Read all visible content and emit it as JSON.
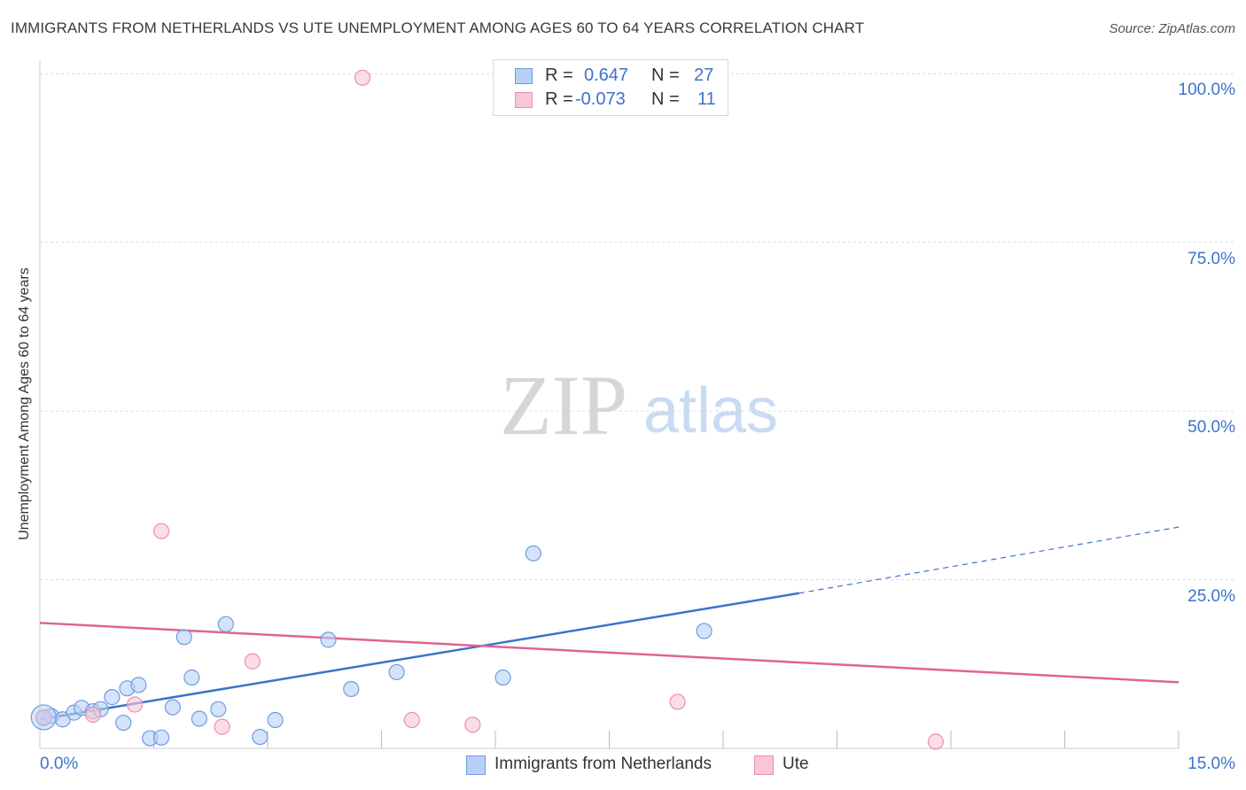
{
  "title": "IMMIGRANTS FROM NETHERLANDS VS UTE UNEMPLOYMENT AMONG AGES 60 TO 64 YEARS CORRELATION CHART",
  "source": "Source: ZipAtlas.com",
  "watermark": {
    "zip": "ZIP",
    "atlas": "atlas"
  },
  "legend": {
    "rows": [
      {
        "r_label": "R =",
        "r_value": "0.647",
        "n_label": "N =",
        "n_value": "27",
        "fill": "#b7d0f5",
        "stroke": "#6f9be0"
      },
      {
        "r_label": "R =",
        "r_value": "-0.073",
        "n_label": "N =",
        "n_value": "11",
        "fill": "#f8c6d6",
        "stroke": "#e88fab"
      }
    ]
  },
  "bottom_legend": [
    {
      "label": "Immigrants from Netherlands",
      "fill": "#b7d0f5",
      "stroke": "#6f9be0"
    },
    {
      "label": "Ute",
      "fill": "#f8c6d6",
      "stroke": "#e88fab"
    }
  ],
  "chart_data": {
    "type": "scatter",
    "title": "IMMIGRANTS FROM NETHERLANDS VS UTE UNEMPLOYMENT AMONG AGES 60 TO 64 YEARS CORRELATION CHART",
    "xlabel": "",
    "ylabel": "Unemployment Among Ages 60 to 64 years",
    "xlim": [
      0,
      15
    ],
    "ylim": [
      0,
      102
    ],
    "x_tick_labels": [
      {
        "value": 0,
        "label": "0.0%"
      },
      {
        "value": 15,
        "label": "15.0%"
      }
    ],
    "y_tick_labels": [
      {
        "value": 25,
        "label": "25.0%"
      },
      {
        "value": 50,
        "label": "50.0%"
      },
      {
        "value": 75,
        "label": "75.0%"
      },
      {
        "value": 100,
        "label": "100.0%"
      }
    ],
    "x_minor_ticks": [
      1.5,
      3.0,
      4.5,
      6.0,
      7.5,
      9.0,
      10.5,
      12.0,
      13.5,
      15.0
    ],
    "grid": true,
    "colors": {
      "netherlands": "#3b73c9",
      "ute": "#e0648f",
      "grid": "#dcdcdc"
    },
    "series": [
      {
        "name": "Immigrants from Netherlands",
        "color": "#6f9be0",
        "fill": "#b7d0f5",
        "points": [
          [
            0.05,
            4.5
          ],
          [
            0.15,
            4.8
          ],
          [
            0.3,
            4.3
          ],
          [
            0.45,
            5.3
          ],
          [
            0.55,
            6.0
          ],
          [
            0.7,
            5.5
          ],
          [
            0.8,
            5.8
          ],
          [
            0.95,
            7.6
          ],
          [
            1.1,
            3.8
          ],
          [
            1.15,
            8.9
          ],
          [
            1.3,
            9.4
          ],
          [
            1.45,
            1.5
          ],
          [
            1.6,
            1.6
          ],
          [
            1.75,
            6.1
          ],
          [
            1.9,
            16.5
          ],
          [
            2.0,
            10.5
          ],
          [
            2.1,
            4.4
          ],
          [
            2.35,
            5.8
          ],
          [
            2.45,
            18.4
          ],
          [
            2.9,
            1.7
          ],
          [
            3.1,
            4.2
          ],
          [
            3.8,
            16.1
          ],
          [
            4.1,
            8.8
          ],
          [
            4.7,
            11.3
          ],
          [
            6.1,
            10.5
          ],
          [
            6.5,
            28.9
          ],
          [
            8.75,
            17.4
          ]
        ],
        "trend": {
          "x0": 0.0,
          "y0": 4.3,
          "x1": 10.0,
          "y1": 23.0,
          "dash_x1": 15.0,
          "dash_y1": 32.8
        }
      },
      {
        "name": "Ute",
        "color": "#e88fab",
        "fill": "#f8c6d6",
        "points": [
          [
            0.05,
            4.6
          ],
          [
            0.7,
            5.0
          ],
          [
            1.25,
            6.5
          ],
          [
            1.6,
            32.2
          ],
          [
            2.4,
            3.2
          ],
          [
            2.8,
            12.9
          ],
          [
            4.25,
            99.4
          ],
          [
            4.9,
            4.2
          ],
          [
            5.7,
            3.5
          ],
          [
            8.4,
            6.9
          ],
          [
            11.8,
            1.0
          ]
        ],
        "trend": {
          "x0": 0.0,
          "y0": 18.6,
          "x1": 15.0,
          "y1": 9.8
        }
      }
    ]
  }
}
